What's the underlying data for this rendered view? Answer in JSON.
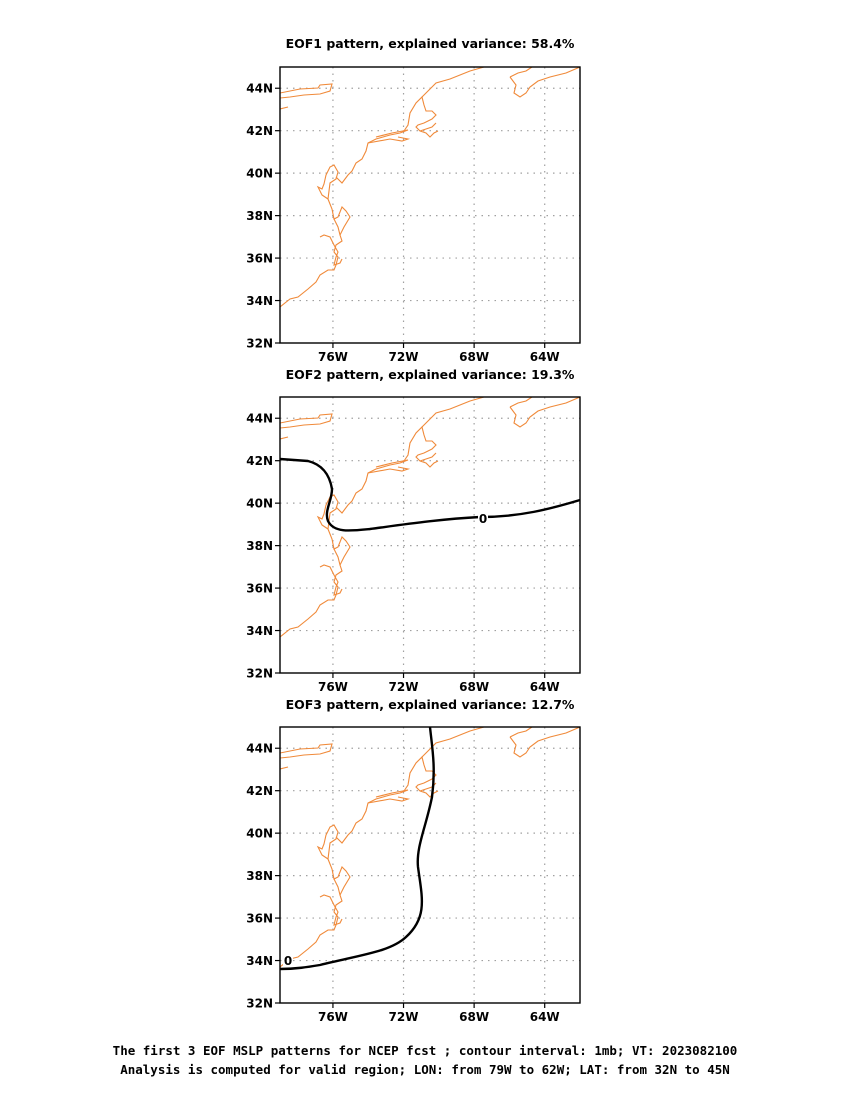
{
  "panels": [
    {
      "title": "EOF1 pattern, explained variance: 58.4%",
      "zero_label": ""
    },
    {
      "title": "EOF2 pattern, explained variance: 19.3%",
      "zero_label": "0"
    },
    {
      "title": "EOF3 pattern, explained variance: 12.7%",
      "zero_label": "0"
    }
  ],
  "axes": {
    "lat_ticks": [
      "44N",
      "42N",
      "40N",
      "38N",
      "36N",
      "34N",
      "32N"
    ],
    "lon_ticks": [
      "76W",
      "72W",
      "68W",
      "64W"
    ],
    "lat_range": [
      32,
      45
    ],
    "lon_range": [
      -79,
      -62
    ]
  },
  "footer": {
    "line1": "The first 3 EOF MSLP patterns for NCEP fcst ; contour interval: 1mb; VT: 2023082100",
    "line2": "Analysis is computed for valid region; LON: from 79W to 62W; LAT: from 32N to 45N"
  },
  "colors": {
    "coastline": "#f08a3a",
    "grid": "#a0a0a0",
    "contour": "#000000",
    "frame": "#000000"
  }
}
